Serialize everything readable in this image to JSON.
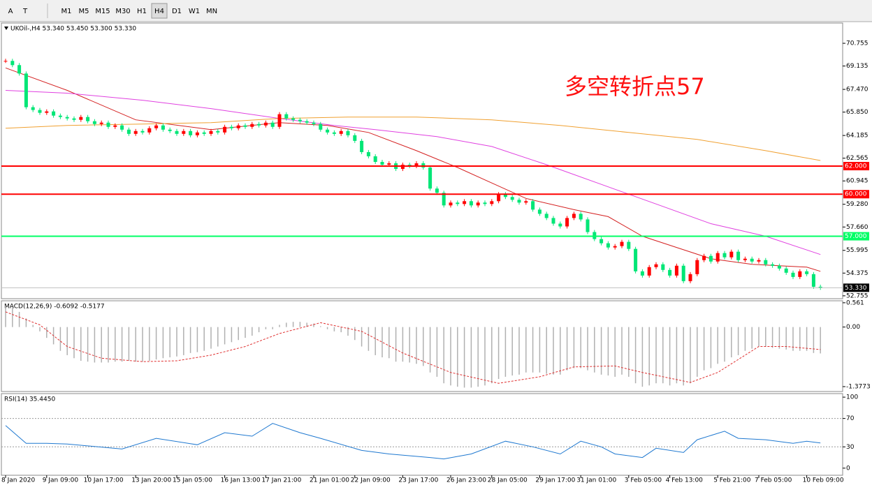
{
  "toolbar": {
    "buttons": [
      "A",
      "T",
      "M1",
      "M5",
      "M15",
      "M30",
      "H1",
      "H4",
      "D1",
      "W1",
      "MN"
    ],
    "active": "H4"
  },
  "chart_data": [
    {
      "type": "candlestick",
      "title": "UKOil-,H4 53.340 53.450 53.300 53.330",
      "annotation": "多空转折点57",
      "up_color": "#ff0000",
      "down_color": "#00e676",
      "closes": [
        69.5,
        69.2,
        68.6,
        66.2,
        66.0,
        65.8,
        65.9,
        65.6,
        65.5,
        65.4,
        65.3,
        65.5,
        65.2,
        65.0,
        65.1,
        64.8,
        64.9,
        64.6,
        64.3,
        64.5,
        64.4,
        64.7,
        64.9,
        64.6,
        64.5,
        64.3,
        64.5,
        64.2,
        64.4,
        64.3,
        64.5,
        64.4,
        64.8,
        64.7,
        64.9,
        64.8,
        65.0,
        64.9,
        65.1,
        64.8,
        65.7,
        65.4,
        65.3,
        65.2,
        65.1,
        65.0,
        64.6,
        64.4,
        64.3,
        64.5,
        64.2,
        63.8,
        63.0,
        62.7,
        62.3,
        62.1,
        62.2,
        61.8,
        62.1,
        62.0,
        62.2,
        61.9,
        60.4,
        60.1,
        59.2,
        59.4,
        59.3,
        59.5,
        59.2,
        59.4,
        59.3,
        59.5,
        60.0,
        59.8,
        59.6,
        59.4,
        59.5,
        58.9,
        58.6,
        58.3,
        57.9,
        57.7,
        58.3,
        58.6,
        58.2,
        57.3,
        56.8,
        56.5,
        56.2,
        56.3,
        56.6,
        56.1,
        54.5,
        54.2,
        54.8,
        55.0,
        54.6,
        54.2,
        54.9,
        53.8,
        54.3,
        55.3,
        55.6,
        55.2,
        55.8,
        55.5,
        55.9,
        55.3,
        55.4,
        55.2,
        55.3,
        55.0,
        54.9,
        54.7,
        54.4,
        54.1,
        54.5,
        54.3,
        53.4,
        53.33
      ],
      "ma": [
        {
          "color": "#d42020",
          "x": [
            0,
            9,
            19,
            30,
            40,
            47,
            53,
            60,
            66,
            71,
            76,
            83,
            88,
            93,
            98,
            103,
            109,
            117,
            119
          ],
          "values": [
            69.0,
            67.4,
            65.3,
            64.6,
            65.1,
            64.9,
            64.4,
            63.1,
            61.9,
            60.8,
            59.7,
            58.9,
            58.4,
            57.0,
            56.2,
            55.4,
            55.0,
            54.8,
            54.5
          ]
        },
        {
          "color": "#e040e0",
          "x": [
            0,
            9,
            20,
            30,
            40,
            48,
            54,
            63,
            71,
            79,
            87,
            95,
            103,
            111,
            119
          ],
          "values": [
            67.4,
            67.2,
            66.7,
            66.1,
            65.4,
            64.9,
            64.6,
            64.1,
            63.4,
            62.1,
            60.7,
            59.3,
            57.9,
            57.0,
            55.7
          ]
        },
        {
          "color": "#f0a030",
          "x": [
            0,
            9,
            20,
            30,
            40,
            50,
            60,
            71,
            81,
            91,
            101,
            111,
            119
          ],
          "values": [
            64.7,
            64.9,
            65.0,
            65.1,
            65.4,
            65.5,
            65.5,
            65.3,
            64.9,
            64.4,
            63.9,
            63.1,
            62.4
          ]
        }
      ],
      "levels": [
        {
          "value": 62,
          "label": "62.000",
          "color": "#ff0000"
        },
        {
          "value": 60,
          "label": "60.000",
          "color": "#ff0000"
        },
        {
          "value": 57,
          "label": "57.000",
          "color": "#00ff66"
        }
      ],
      "current": {
        "value": 53.33,
        "label": "53.330"
      },
      "ylim": [
        52.55,
        72.2
      ],
      "yticks": [
        {
          "value": 70.755,
          "label": "70.755"
        },
        {
          "value": 69.135,
          "label": "69.135"
        },
        {
          "value": 67.47,
          "label": "67.470"
        },
        {
          "value": 65.85,
          "label": "65.850"
        },
        {
          "value": 64.185,
          "label": "64.185"
        },
        {
          "value": 62.565,
          "label": "62.565"
        },
        {
          "value": 60.945,
          "label": "60.945"
        },
        {
          "value": 59.28,
          "label": "59.280"
        },
        {
          "value": 57.66,
          "label": "57.660"
        },
        {
          "value": 55.995,
          "label": "55.995"
        },
        {
          "value": 54.375,
          "label": "54.375"
        },
        {
          "value": 52.755,
          "label": "52.755"
        }
      ],
      "xticks": [
        {
          "value": 0,
          "label": "8 Jan 2020"
        },
        {
          "value": 6,
          "label": "9 Jan 09:00"
        },
        {
          "value": 12,
          "label": "10 Jan 17:00"
        },
        {
          "value": 19,
          "label": "13 Jan 20:00"
        },
        {
          "value": 25,
          "label": "15 Jan 05:00"
        },
        {
          "value": 32,
          "label": "16 Jan 13:00"
        },
        {
          "value": 38,
          "label": "17 Jan 21:00"
        },
        {
          "value": 45,
          "label": "21 Jan 01:00"
        },
        {
          "value": 51,
          "label": "22 Jan 09:00"
        },
        {
          "value": 58,
          "label": "23 Jan 17:00"
        },
        {
          "value": 65,
          "label": "26 Jan 23:00"
        },
        {
          "value": 71,
          "label": "28 Jan 05:00"
        },
        {
          "value": 78,
          "label": "29 Jan 17:00"
        },
        {
          "value": 84,
          "label": "31 Jan 01:00"
        },
        {
          "value": 91,
          "label": "3 Feb 05:00"
        },
        {
          "value": 97,
          "label": "4 Feb 13:00"
        },
        {
          "value": 104,
          "label": "5 Feb 21:00"
        },
        {
          "value": 110,
          "label": "7 Feb 05:00"
        },
        {
          "value": 117,
          "label": "10 Feb 09:00"
        }
      ]
    },
    {
      "type": "macd",
      "title": "MACD(12,26,9) -0.6092 -0.5177",
      "color": "#b0b0b0",
      "values": [
        0.5,
        0.45,
        0.35,
        0.2,
        0.05,
        -0.1,
        -0.25,
        -0.4,
        -0.55,
        -0.65,
        -0.72,
        -0.78,
        -0.8,
        -0.82,
        -0.82,
        -0.82,
        -0.8,
        -0.8,
        -0.78,
        -0.8,
        -0.8,
        -0.78,
        -0.75,
        -0.72,
        -0.7,
        -0.68,
        -0.65,
        -0.6,
        -0.58,
        -0.55,
        -0.5,
        -0.45,
        -0.4,
        -0.35,
        -0.3,
        -0.25,
        -0.2,
        -0.12,
        -0.05,
        -0.05,
        0.05,
        0.1,
        0.12,
        0.12,
        0.1,
        0.08,
        0.02,
        -0.05,
        -0.1,
        -0.12,
        -0.2,
        -0.3,
        -0.45,
        -0.55,
        -0.65,
        -0.7,
        -0.72,
        -0.8,
        -0.8,
        -0.82,
        -0.85,
        -0.9,
        -1.05,
        -1.15,
        -1.3,
        -1.35,
        -1.38,
        -1.4,
        -1.4,
        -1.38,
        -1.35,
        -1.3,
        -1.2,
        -1.15,
        -1.12,
        -1.1,
        -1.05,
        -1.05,
        -1.05,
        -1.08,
        -1.1,
        -1.1,
        -1.0,
        -0.95,
        -0.95,
        -1.0,
        -1.05,
        -1.1,
        -1.12,
        -1.15,
        -1.1,
        -1.15,
        -1.3,
        -1.38,
        -1.35,
        -1.3,
        -1.3,
        -1.35,
        -1.3,
        -1.35,
        -1.3,
        -1.15,
        -1.0,
        -0.95,
        -0.85,
        -0.8,
        -0.7,
        -0.65,
        -0.55,
        -0.5,
        -0.45,
        -0.45,
        -0.48,
        -0.5,
        -0.52,
        -0.55,
        -0.55,
        -0.55,
        -0.6,
        -0.61
      ],
      "signal": {
        "color": "#e03030",
        "x": [
          0,
          5,
          9,
          14,
          20,
          25,
          30,
          35,
          40,
          46,
          52,
          58,
          65,
          72,
          78,
          83,
          89,
          93,
          100,
          104,
          110,
          114,
          119
        ],
        "values": [
          0.35,
          0.05,
          -0.45,
          -0.72,
          -0.8,
          -0.78,
          -0.65,
          -0.45,
          -0.15,
          0.1,
          -0.1,
          -0.6,
          -1.05,
          -1.3,
          -1.15,
          -0.92,
          -0.9,
          -1.05,
          -1.28,
          -1.05,
          -0.45,
          -0.45,
          -0.52
        ]
      },
      "ylim": [
        -1.49,
        0.607
      ],
      "yticks": [
        {
          "value": 0.561,
          "label": "0.561"
        },
        {
          "value": 0,
          "label": "0.00"
        },
        {
          "value": -1.3773,
          "label": "-1.3773"
        }
      ]
    },
    {
      "type": "rsi",
      "title": "RSI(14) 35.4450",
      "color": "#1e78d0",
      "x": [
        0,
        3,
        6,
        9,
        17,
        22,
        28,
        32,
        36,
        39,
        43,
        46,
        52,
        56,
        62,
        64,
        68,
        73,
        77,
        81,
        84,
        87,
        89,
        93,
        95,
        99,
        101,
        105,
        107,
        111,
        115,
        117,
        119
      ],
      "values": [
        60,
        35,
        35,
        34,
        27,
        42,
        33,
        50,
        45,
        63,
        50,
        42,
        25,
        20,
        15,
        13,
        20,
        38,
        30,
        20,
        38,
        30,
        20,
        15,
        28,
        22,
        40,
        52,
        42,
        40,
        35,
        38,
        35.445
      ],
      "ylim": [
        -10,
        105
      ],
      "yticks": [
        100,
        70,
        30,
        0
      ],
      "dotted_levels": [
        70,
        30
      ]
    }
  ]
}
